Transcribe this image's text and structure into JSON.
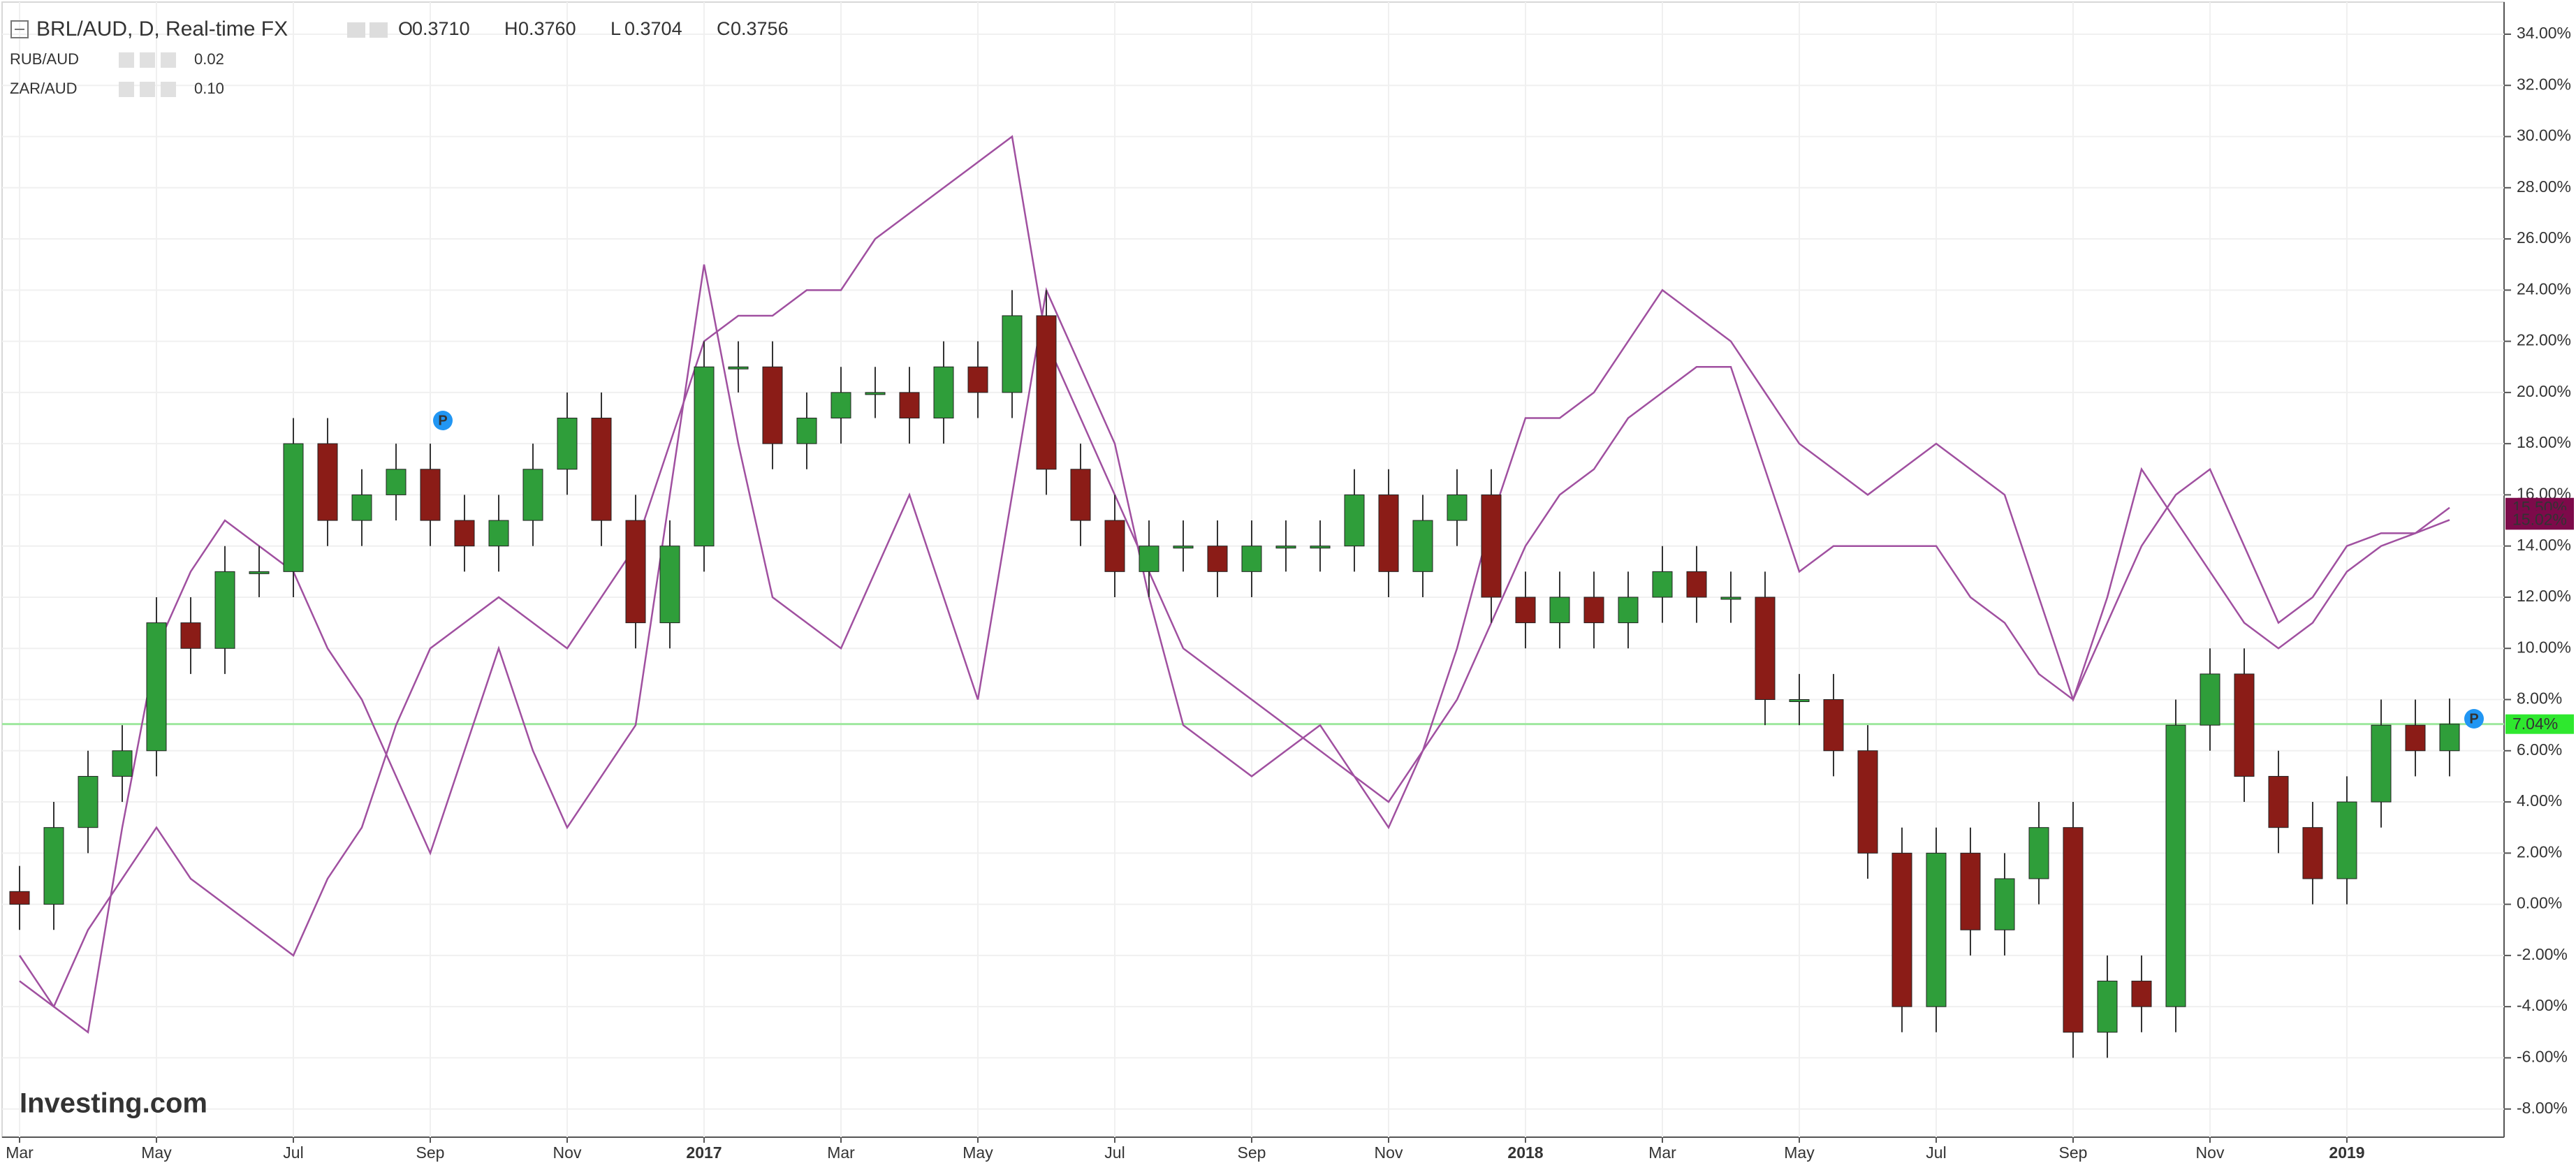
{
  "chart_data": {
    "type": "candlestick",
    "title": "BRL/AUD, D, Real-time FX",
    "ohlc_header": [
      {
        "label": "O",
        "value": "0.3710"
      },
      {
        "label": "H",
        "value": "0.3760"
      },
      {
        "label": "L",
        "value": "0.3704"
      },
      {
        "label": "C",
        "value": "0.3756"
      }
    ],
    "watermark": "Investing.com",
    "event_marker": "P",
    "categories": [
      "Mar",
      null,
      null,
      null,
      "May",
      null,
      null,
      null,
      "Jul",
      null,
      null,
      null,
      "Sep",
      null,
      null,
      null,
      "Nov",
      null,
      null,
      null,
      "2017",
      null,
      null,
      null,
      "Mar",
      null,
      null,
      null,
      "May",
      null,
      null,
      null,
      "Jul",
      null,
      null,
      null,
      "Sep",
      null,
      null,
      null,
      "Nov",
      null,
      null,
      null,
      "2018",
      null,
      null,
      null,
      "Mar",
      null,
      null,
      null,
      "May",
      null,
      null,
      null,
      "Jul",
      null,
      null,
      null,
      "Sep",
      null,
      null,
      null,
      "Nov",
      null,
      null,
      null,
      "2019",
      null,
      null,
      null
    ],
    "candles": {
      "name": "BRL/AUD",
      "up_color": "#2f9e3a",
      "down_color": "#8b1c17",
      "last_label": "7.04%",
      "label_color": "#2ee82e",
      "open": [
        0.5,
        0,
        3,
        5,
        6,
        11,
        10,
        13,
        13,
        18,
        15,
        16,
        17,
        15,
        14,
        15,
        17,
        19,
        15,
        11,
        14,
        21,
        21,
        18,
        19,
        20,
        20,
        19,
        21,
        20,
        23,
        17,
        15,
        13,
        14,
        14,
        13,
        14,
        14,
        14,
        16,
        13,
        15,
        16,
        12,
        11,
        12,
        11,
        12,
        13,
        12,
        12,
        8,
        8,
        6,
        2,
        -4,
        2,
        -1,
        1,
        3,
        -5,
        -3,
        -4,
        7,
        9,
        5,
        3,
        1,
        4,
        7,
        6
      ],
      "high": [
        1.5,
        4,
        6,
        7,
        12,
        12,
        14,
        14,
        19,
        19,
        17,
        18,
        18,
        16,
        16,
        18,
        20,
        20,
        16,
        15,
        22,
        22,
        22,
        20,
        21,
        21,
        21,
        22,
        22,
        24,
        24,
        18,
        16,
        15,
        15,
        15,
        15,
        15,
        15,
        17,
        17,
        16,
        17,
        17,
        13,
        13,
        13,
        13,
        14,
        14,
        13,
        13,
        9,
        9,
        7,
        3,
        3,
        3,
        2,
        4,
        4,
        -2,
        -2,
        8,
        10,
        10,
        6,
        4,
        5,
        8,
        8,
        8.04
      ],
      "low": [
        -1,
        -1,
        2,
        4,
        5,
        9,
        9,
        12,
        12,
        14,
        14,
        15,
        14,
        13,
        13,
        14,
        16,
        14,
        10,
        10,
        13,
        20,
        17,
        17,
        18,
        19,
        18,
        18,
        19,
        19,
        16,
        14,
        12,
        12,
        13,
        12,
        12,
        13,
        13,
        13,
        12,
        12,
        14,
        11,
        10,
        10,
        10,
        10,
        11,
        11,
        11,
        7,
        7,
        5,
        1,
        -5,
        -5,
        -2,
        -2,
        0,
        -6,
        -6,
        -5,
        -5,
        6,
        4,
        2,
        0,
        0,
        3,
        5,
        5
      ],
      "close": [
        0,
        3,
        5,
        6,
        11,
        10,
        13,
        13,
        18,
        15,
        16,
        17,
        15,
        14,
        15,
        17,
        19,
        15,
        11,
        14,
        21,
        21,
        18,
        19,
        20,
        20,
        19,
        21,
        20,
        23,
        17,
        15,
        13,
        14,
        14,
        13,
        14,
        14,
        14,
        16,
        13,
        15,
        16,
        12,
        11,
        12,
        11,
        12,
        13,
        12,
        12,
        8,
        8,
        6,
        2,
        -4,
        2,
        -1,
        1,
        3,
        -5,
        -3,
        -4,
        7,
        9,
        5,
        3,
        1,
        4,
        7,
        6,
        7.04
      ]
    },
    "series": [
      {
        "name": "RUB/AUD",
        "legend_value": "0.02",
        "color": "#a050a0",
        "label_color": "#7d0a4a",
        "last_label": "15.50%",
        "values": [
          -3,
          -4,
          -1,
          1,
          3,
          1,
          0,
          -1,
          -2,
          1,
          3,
          7,
          10,
          11,
          12,
          11,
          10,
          12,
          14,
          18,
          22,
          23,
          23,
          24,
          24,
          26,
          27,
          28,
          29,
          30,
          22,
          19,
          16,
          13,
          10,
          9,
          8,
          7,
          6,
          5,
          4,
          6,
          8,
          11,
          14,
          16,
          17,
          19,
          20,
          21,
          21,
          17,
          13,
          14,
          14,
          14,
          14,
          12,
          11,
          9,
          8,
          12,
          17,
          15,
          13,
          11,
          10,
          11,
          13,
          14,
          14.5,
          15.5
        ]
      },
      {
        "name": "ZAR/AUD",
        "legend_value": "0.10",
        "color": "#a050a0",
        "label_color": "#7d0a4a",
        "last_label": "15.02%",
        "values": [
          -2,
          -4,
          -5,
          3,
          10,
          13,
          15,
          14,
          13,
          10,
          8,
          5,
          2,
          6,
          10,
          6,
          3,
          5,
          7,
          16,
          25,
          18,
          12,
          11,
          10,
          13,
          16,
          12,
          8,
          16,
          24,
          21,
          18,
          12,
          7,
          6,
          5,
          6,
          7,
          5,
          3,
          6,
          10,
          15,
          19,
          19,
          20,
          22,
          24,
          23,
          22,
          20,
          18,
          17,
          16,
          17,
          18,
          17,
          16,
          12,
          8,
          11,
          14,
          16,
          17,
          14,
          11,
          12,
          14,
          14.5,
          14.5,
          15.02
        ]
      }
    ],
    "price_line_color": "#9ee89e",
    "ylim": [
      -9.1,
      35.2
    ],
    "yticks": [
      {
        "value": -8,
        "label": "-8.00%"
      },
      {
        "value": -6,
        "label": "-6.00%"
      },
      {
        "value": -4,
        "label": "-4.00%"
      },
      {
        "value": -2,
        "label": "-2.00%"
      },
      {
        "value": 0,
        "label": "0.00%"
      },
      {
        "value": 2,
        "label": "2.00%"
      },
      {
        "value": 4,
        "label": "4.00%"
      },
      {
        "value": 6,
        "label": "6.00%"
      },
      {
        "value": 8,
        "label": "8.00%"
      },
      {
        "value": 10,
        "label": "10.00%"
      },
      {
        "value": 12,
        "label": "12.00%"
      },
      {
        "value": 14,
        "label": "14.00%"
      },
      {
        "value": 16,
        "label": "16.00%"
      },
      {
        "value": 18,
        "label": "18.00%"
      },
      {
        "value": 20,
        "label": "20.00%"
      },
      {
        "value": 22,
        "label": "22.00%"
      },
      {
        "value": 24,
        "label": "24.00%"
      },
      {
        "value": 26,
        "label": "26.00%"
      },
      {
        "value": 28,
        "label": "28.00%"
      },
      {
        "value": 30,
        "label": "30.00%"
      },
      {
        "value": 32,
        "label": "32.00%"
      },
      {
        "value": 34,
        "label": "34.00%"
      }
    ],
    "grid": true
  }
}
